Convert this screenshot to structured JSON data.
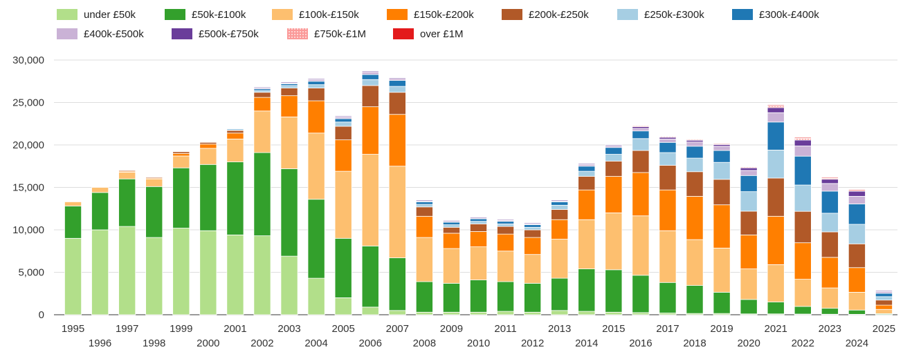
{
  "chart_data": {
    "type": "bar",
    "stacked": true,
    "title": "",
    "xlabel": "",
    "ylabel": "",
    "ylim": [
      0,
      30000
    ],
    "yticks": [
      0,
      5000,
      10000,
      15000,
      20000,
      25000,
      30000
    ],
    "ytick_labels": [
      "0",
      "5,000",
      "10,000",
      "15,000",
      "20,000",
      "25,000",
      "30,000"
    ],
    "grid": true,
    "legend_position": "top-left",
    "categories": [
      "1995",
      "1996",
      "1997",
      "1998",
      "1999",
      "2000",
      "2001",
      "2002",
      "2003",
      "2004",
      "2005",
      "2006",
      "2007",
      "2008",
      "2009",
      "2010",
      "2011",
      "2012",
      "2013",
      "2014",
      "2015",
      "2016",
      "2017",
      "2018",
      "2019",
      "2020",
      "2021",
      "2022",
      "2023",
      "2024",
      "2025"
    ],
    "series": [
      {
        "name": "under £50k",
        "color": "#b2df8a",
        "values": [
          9000,
          10000,
          10400,
          9100,
          10200,
          9900,
          9400,
          9300,
          6900,
          4300,
          2000,
          900,
          500,
          300,
          300,
          300,
          400,
          300,
          500,
          400,
          300,
          250,
          200,
          150,
          150,
          100,
          100,
          80,
          60,
          50,
          30
        ]
      },
      {
        "name": "£50k-£100k",
        "color": "#33a02c",
        "values": [
          3800,
          4400,
          5600,
          6000,
          7100,
          7800,
          8600,
          9800,
          10300,
          9300,
          7000,
          7200,
          6200,
          3600,
          3400,
          3800,
          3500,
          3400,
          3800,
          5000,
          5000,
          4400,
          3600,
          3300,
          2500,
          1700,
          1400,
          900,
          700,
          500,
          100
        ]
      },
      {
        "name": "£100k-£150k",
        "color": "#fdbf6f",
        "values": [
          500,
          600,
          800,
          900,
          1400,
          1900,
          2700,
          4900,
          6100,
          7800,
          7900,
          10800,
          10800,
          5200,
          4100,
          3900,
          3600,
          3400,
          4600,
          5800,
          6700,
          7000,
          6100,
          5400,
          5200,
          3600,
          4400,
          3200,
          2400,
          2100,
          500
        ]
      },
      {
        "name": "£150k-£200k",
        "color": "#ff7f00",
        "values": [
          0,
          0,
          100,
          100,
          300,
          500,
          700,
          1600,
          2500,
          3800,
          3700,
          5600,
          6100,
          2500,
          1800,
          1800,
          2000,
          2000,
          2300,
          3500,
          4300,
          5100,
          4800,
          5100,
          5100,
          4000,
          5700,
          4300,
          3600,
          2900,
          500
        ]
      },
      {
        "name": "£200k-£250k",
        "color": "#b15928",
        "values": [
          0,
          0,
          100,
          100,
          200,
          200,
          300,
          600,
          900,
          1500,
          1600,
          2500,
          2600,
          1100,
          700,
          900,
          900,
          900,
          1200,
          1600,
          1800,
          2600,
          2900,
          2900,
          3000,
          2800,
          4500,
          3700,
          3000,
          2800,
          600
        ]
      },
      {
        "name": "£250k-£300k",
        "color": "#a6cee3",
        "values": [
          0,
          0,
          0,
          0,
          0,
          0,
          100,
          200,
          300,
          400,
          500,
          700,
          700,
          300,
          300,
          300,
          300,
          300,
          500,
          600,
          800,
          1400,
          1500,
          1600,
          2000,
          2300,
          3300,
          3100,
          2200,
          2300,
          400
        ]
      },
      {
        "name": "£300k-£400k",
        "color": "#1f78b4",
        "values": [
          0,
          0,
          0,
          0,
          0,
          0,
          100,
          200,
          200,
          400,
          400,
          600,
          700,
          300,
          300,
          300,
          300,
          300,
          400,
          600,
          800,
          900,
          1200,
          1400,
          1400,
          1900,
          3300,
          3400,
          2600,
          2400,
          400
        ]
      },
      {
        "name": "£400k-£500k",
        "color": "#cab2d6",
        "values": [
          0,
          0,
          0,
          0,
          0,
          0,
          0,
          100,
          100,
          200,
          200,
          300,
          200,
          100,
          100,
          100,
          100,
          100,
          100,
          200,
          200,
          300,
          400,
          500,
          500,
          600,
          1100,
          1200,
          900,
          900,
          200
        ]
      },
      {
        "name": "£500k-£750k",
        "color": "#6a3d9a",
        "values": [
          0,
          0,
          0,
          0,
          0,
          0,
          0,
          100,
          100,
          100,
          100,
          100,
          100,
          100,
          100,
          100,
          100,
          100,
          100,
          100,
          100,
          200,
          200,
          200,
          200,
          300,
          600,
          700,
          500,
          600,
          100
        ]
      },
      {
        "name": "£750k-£1M",
        "color": "#fb9a99",
        "values": [
          0,
          0,
          0,
          0,
          0,
          0,
          0,
          0,
          0,
          0,
          0,
          0,
          0,
          0,
          0,
          0,
          0,
          0,
          0,
          0,
          0,
          100,
          100,
          100,
          100,
          100,
          200,
          200,
          100,
          100,
          0
        ]
      },
      {
        "name": "over £1M",
        "color": "#e31a1c",
        "values": [
          0,
          0,
          0,
          0,
          0,
          0,
          0,
          0,
          0,
          0,
          0,
          0,
          0,
          0,
          0,
          0,
          0,
          0,
          0,
          0,
          0,
          0,
          0,
          0,
          0,
          0,
          100,
          100,
          100,
          100,
          0
        ]
      }
    ]
  }
}
